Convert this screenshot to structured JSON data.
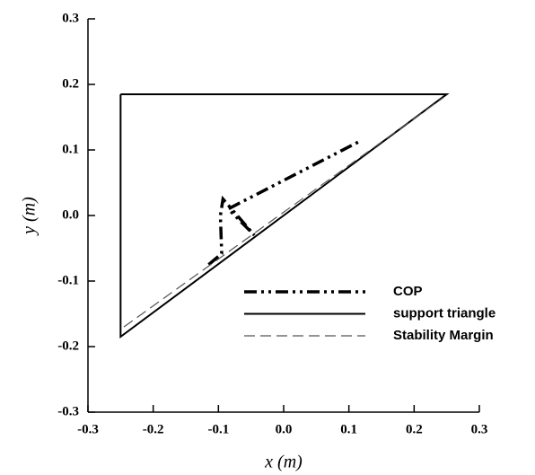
{
  "chart_data": {
    "type": "line",
    "x_label": "x (m)",
    "y_label": "y (m)",
    "xlim": [
      -0.3,
      0.3
    ],
    "ylim": [
      -0.3,
      0.3
    ],
    "xticks": [
      -0.3,
      -0.2,
      -0.1,
      {
        "value": 0,
        "label": "0.0"
      },
      0.1,
      0.2,
      0.3
    ],
    "yticks": [
      -0.3,
      -0.2,
      -0.1,
      {
        "value": 0,
        "label": "0.0"
      },
      0.1,
      0.2,
      0.3
    ],
    "legend": "lower right",
    "series": [
      {
        "name": "COP",
        "color": "#000000",
        "style": "dash-dot-dot",
        "width": 3.5,
        "x": [
          -0.115,
          -0.095,
          -0.097,
          -0.093,
          -0.045,
          -0.085,
          0.12
        ],
        "values": [
          -0.075,
          -0.058,
          0.0,
          0.025,
          -0.03,
          0.01,
          0.115
        ]
      },
      {
        "name": "support triangle",
        "color": "#000000",
        "style": "solid",
        "width": 2,
        "x": [
          -0.25,
          0.25,
          -0.25,
          -0.25
        ],
        "values": [
          0.185,
          0.185,
          -0.185,
          0.185
        ]
      },
      {
        "name": "Stability Margin",
        "color": "#555555",
        "style": "dashed",
        "width": 1.2,
        "x": [
          -0.245,
          0.245
        ],
        "values": [
          -0.17,
          0.18
        ]
      }
    ]
  }
}
